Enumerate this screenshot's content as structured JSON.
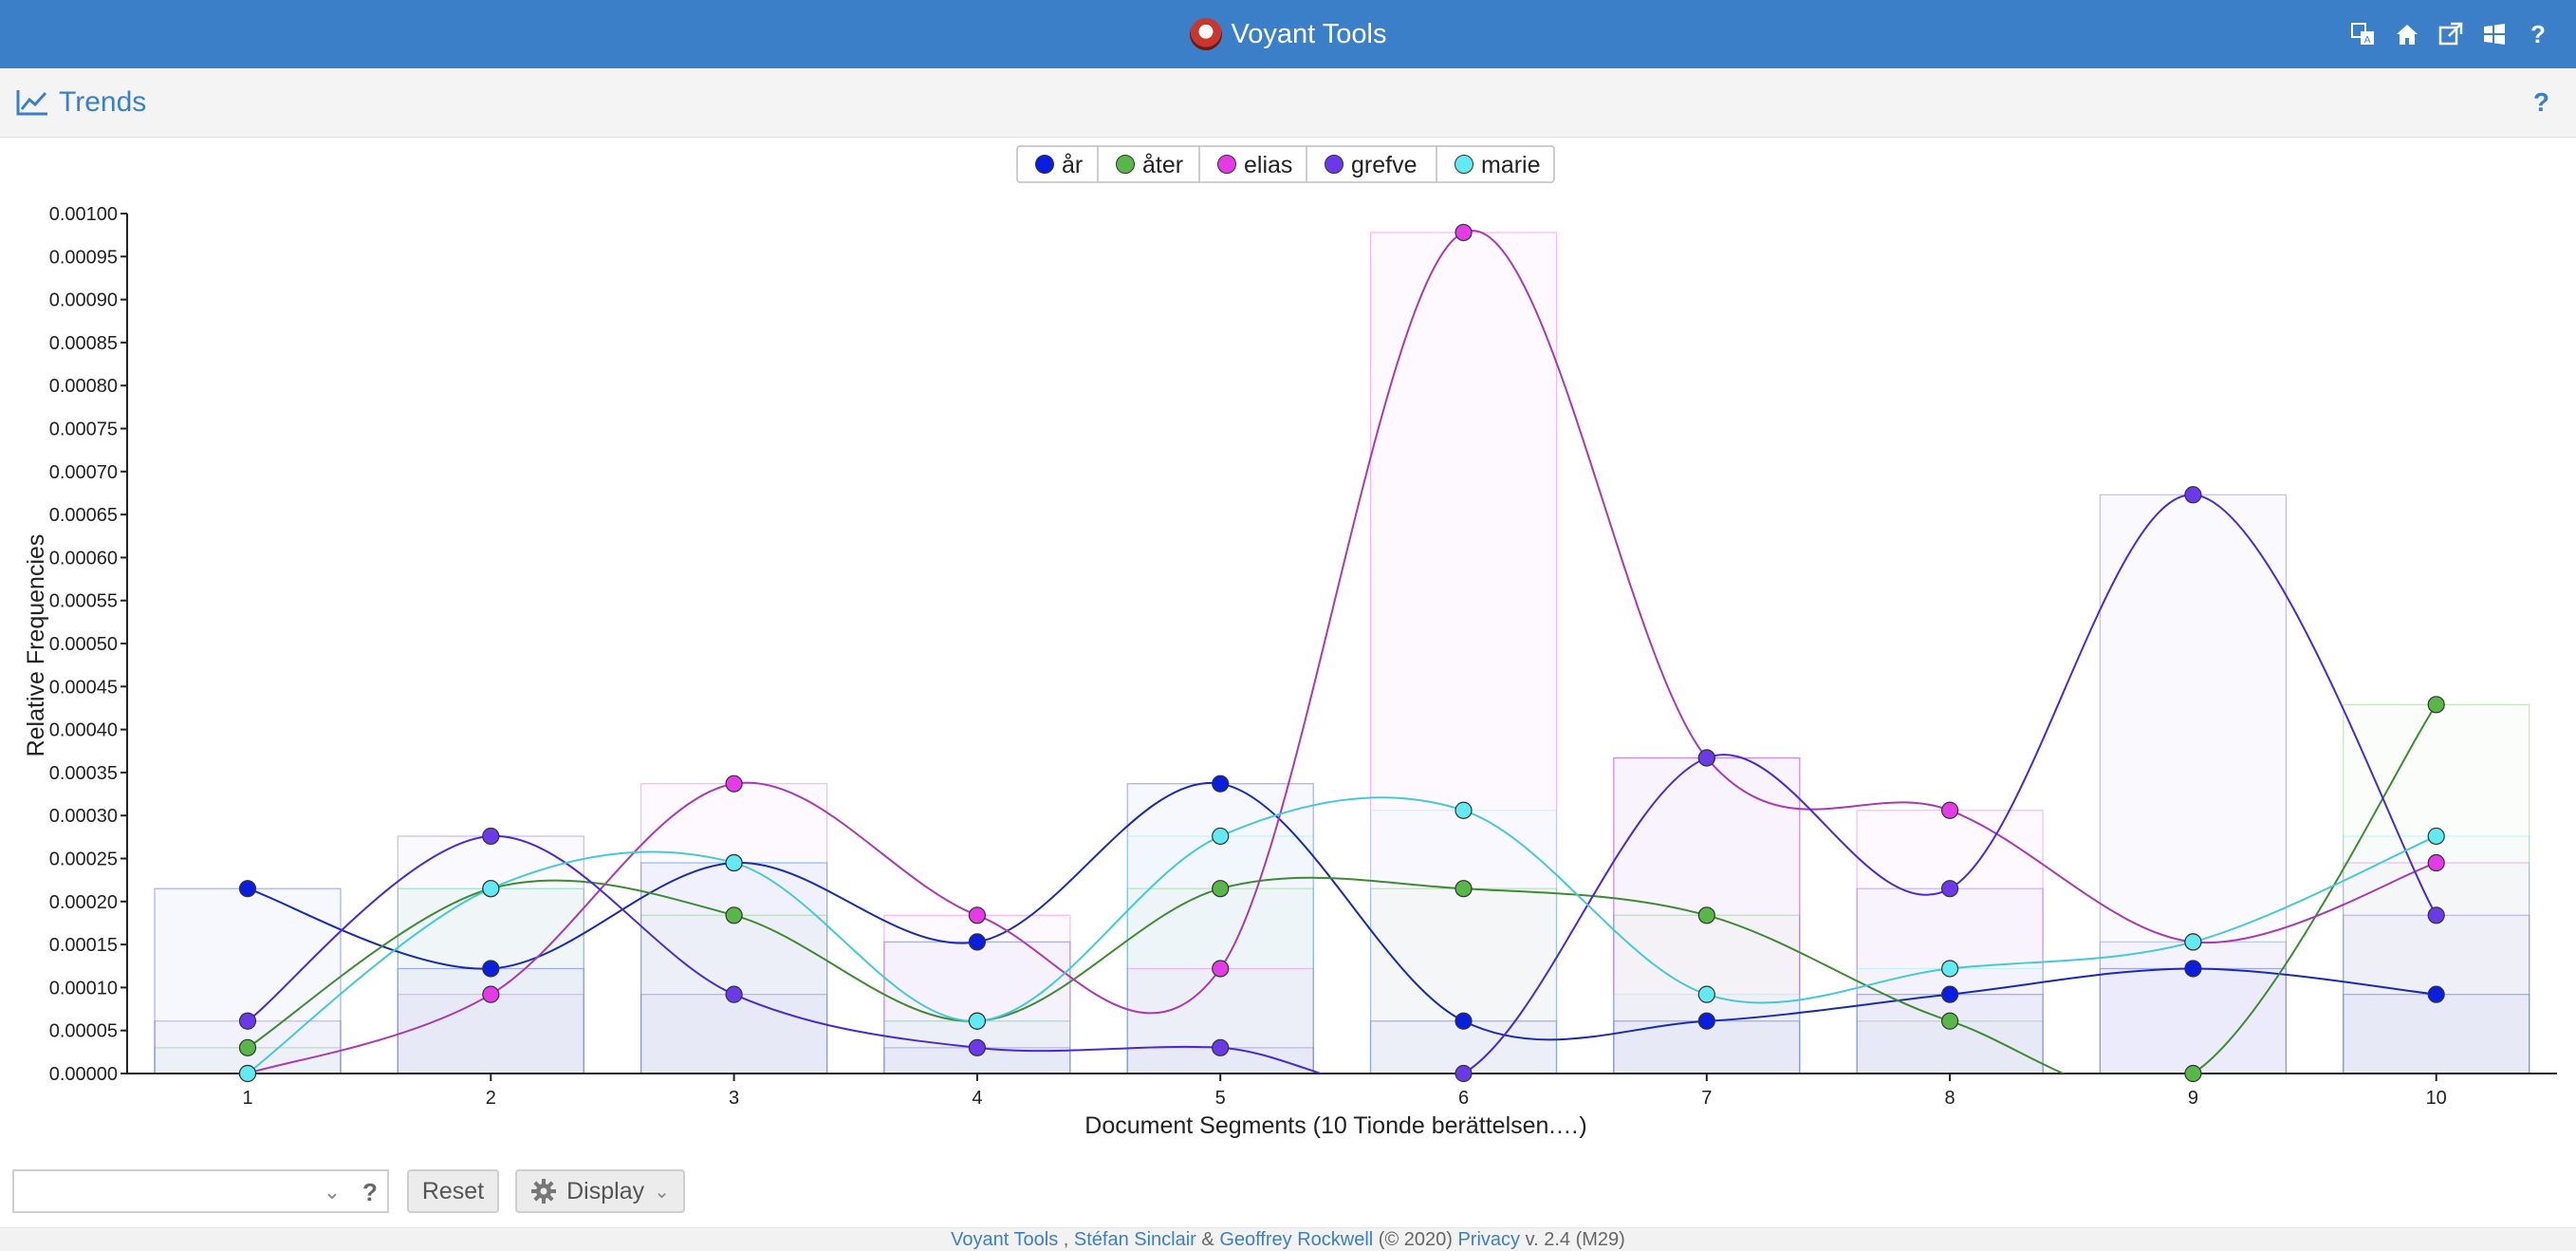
{
  "app": {
    "title": "Voyant Tools",
    "top_icons": [
      "translate-icon",
      "home-icon",
      "export-icon",
      "windows-icon",
      "help-icon"
    ]
  },
  "panel": {
    "title": "Trends",
    "help": "?"
  },
  "chart_data": {
    "type": "line",
    "title": "",
    "xlabel": "Document Segments (10 Tionde berättelsen.…)",
    "ylabel": "Relative Frequencies",
    "x": [
      1,
      2,
      3,
      4,
      5,
      6,
      7,
      8,
      9,
      10
    ],
    "ylim": [
      0,
      0.001
    ],
    "yticks": [
      "0.00000",
      "0.00005",
      "0.00010",
      "0.00015",
      "0.00020",
      "0.00025",
      "0.00030",
      "0.00035",
      "0.00040",
      "0.00045",
      "0.00050",
      "0.00055",
      "0.00060",
      "0.00065",
      "0.00070",
      "0.00075",
      "0.00080",
      "0.00085",
      "0.00090",
      "0.00095",
      "0.00100"
    ],
    "grid": false,
    "legend_position": "top-center",
    "series": [
      {
        "name": "år",
        "color": "#0a1ee0",
        "line_color": "#1a2ab0",
        "values": [
          0.000215,
          0.000122,
          0.000245,
          0.000153,
          0.000337,
          6.1e-05,
          6.1e-05,
          9.2e-05,
          0.000122,
          9.2e-05
        ]
      },
      {
        "name": "åter",
        "color": "#58b847",
        "line_color": "#3f8a32",
        "values": [
          3e-05,
          0.000215,
          0.000184,
          6.1e-05,
          0.000215,
          0.000215,
          0.000184,
          6.1e-05,
          0.0,
          0.000429
        ]
      },
      {
        "name": "elias",
        "color": "#e53be6",
        "line_color": "#a83bb0",
        "values": [
          0.0,
          9.2e-05,
          0.000337,
          0.000184,
          0.000122,
          0.000978,
          0.000367,
          0.000306,
          0.000153,
          0.000245
        ]
      },
      {
        "name": "grefve",
        "color": "#6a3ae8",
        "line_color": "#4a2ad0",
        "values": [
          6.1e-05,
          0.000276,
          9.2e-05,
          3e-05,
          3e-05,
          0.0,
          0.000367,
          0.000215,
          0.000673,
          0.000184
        ]
      },
      {
        "name": "marie",
        "color": "#62eaf2",
        "line_color": "#45c9d3",
        "values": [
          0.0,
          0.000215,
          0.000245,
          6.1e-05,
          0.000276,
          0.000306,
          9.2e-05,
          0.000122,
          0.000153,
          0.000276
        ]
      }
    ]
  },
  "toolbar": {
    "search_value": "",
    "search_help": "?",
    "reset_label": "Reset",
    "display_label": "Display"
  },
  "footer": {
    "link1": "Voyant Tools",
    "sep1": " , ",
    "link2": "Stéfan Sinclair",
    "amp": " & ",
    "link3": "Geoffrey Rockwell",
    "copyright": " (© 2020) ",
    "link4": "Privacy",
    "version": " v. 2.4 (M29)"
  }
}
